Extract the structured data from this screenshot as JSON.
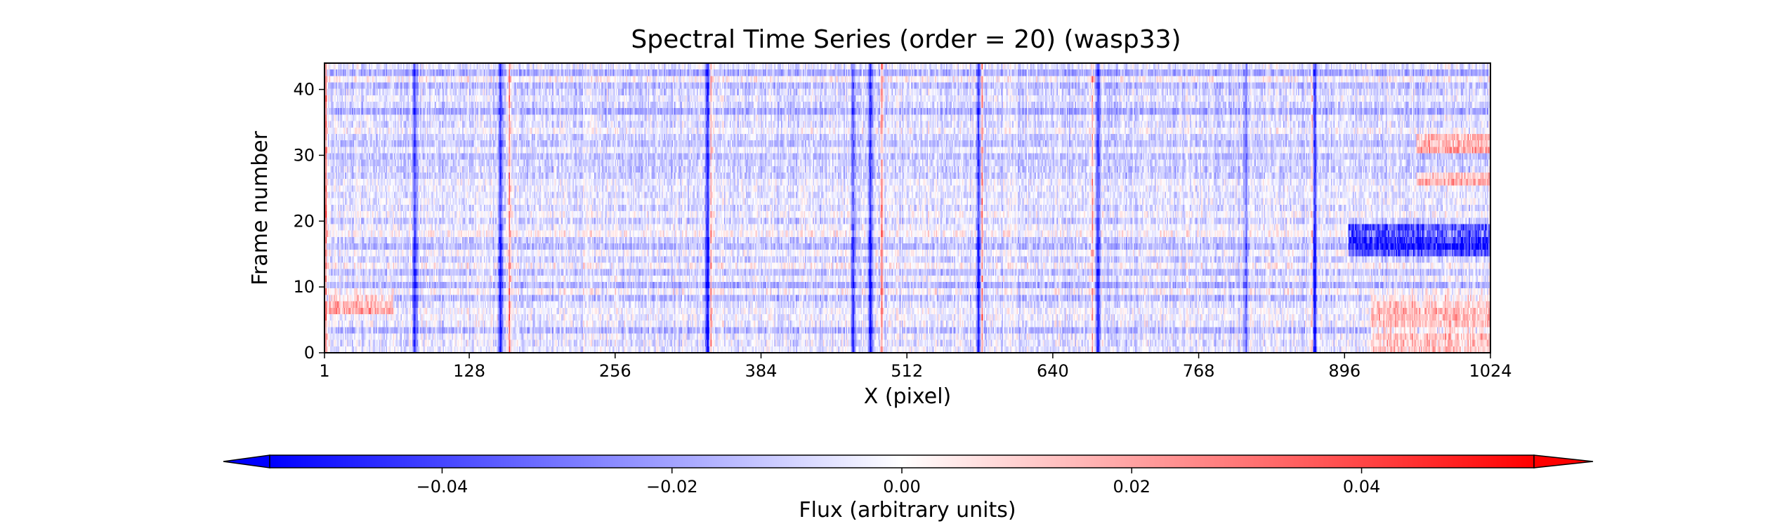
{
  "chart_data": {
    "type": "heatmap",
    "title": "Spectral Time Series (order = 20) (wasp33)",
    "xlabel": "X (pixel)",
    "ylabel": "Frame number",
    "xlim": [
      1,
      1024
    ],
    "ylim": [
      0,
      44
    ],
    "x_ticks": [
      "1",
      "128",
      "256",
      "384",
      "512",
      "640",
      "768",
      "896",
      "1024"
    ],
    "x_tick_values": [
      1,
      128,
      256,
      384,
      512,
      640,
      768,
      896,
      1024
    ],
    "y_ticks": [
      "0",
      "10",
      "20",
      "30",
      "40"
    ],
    "y_tick_values": [
      0,
      10,
      20,
      30,
      40
    ],
    "colormap": "bwr",
    "color_min": "#0000ff",
    "color_mid": "#ffffff",
    "color_max": "#ff0000",
    "clim": [
      -0.055,
      0.055
    ],
    "colorbar": {
      "label": "Flux (arbitrary units)",
      "orientation": "horizontal",
      "placement": "bottom",
      "extend": "both",
      "ticks": [
        "−0.04",
        "−0.02",
        "0.00",
        "0.02",
        "0.04"
      ],
      "tick_values": [
        -0.04,
        -0.02,
        0.0,
        0.02,
        0.04
      ]
    },
    "n_frames": 45,
    "background_level": -0.008,
    "absorption_lines": [
      {
        "x": 80,
        "depth": -0.045
      },
      {
        "x": 155,
        "depth": -0.05
      },
      {
        "x": 337,
        "depth": -0.05
      },
      {
        "x": 465,
        "depth": -0.04
      },
      {
        "x": 480,
        "depth": -0.05
      },
      {
        "x": 575,
        "depth": -0.05
      },
      {
        "x": 680,
        "depth": -0.045
      },
      {
        "x": 810,
        "depth": -0.035
      },
      {
        "x": 870,
        "depth": -0.05
      }
    ],
    "emission_lines": [
      {
        "x": 2,
        "level": 0.05
      },
      {
        "x": 163,
        "level": 0.05
      },
      {
        "x": 340,
        "level": 0.04
      },
      {
        "x": 490,
        "level": 0.04
      },
      {
        "x": 578,
        "level": 0.05
      },
      {
        "x": 675,
        "level": 0.045
      },
      {
        "x": 868,
        "level": 0.04
      }
    ],
    "features": [
      {
        "x_range": [
          960,
          1024
        ],
        "frames": [
          31,
          33
        ],
        "level": 0.03
      },
      {
        "x_range": [
          960,
          1024
        ],
        "frames": [
          26,
          27
        ],
        "level": 0.025
      },
      {
        "x_range": [
          920,
          1024
        ],
        "frames": [
          0,
          8
        ],
        "level": 0.02
      },
      {
        "x_range": [
          900,
          1024
        ],
        "frames": [
          15,
          19
        ],
        "level": -0.04
      },
      {
        "x_range": [
          5,
          60
        ],
        "frames": [
          6,
          8
        ],
        "level": 0.025
      }
    ]
  }
}
